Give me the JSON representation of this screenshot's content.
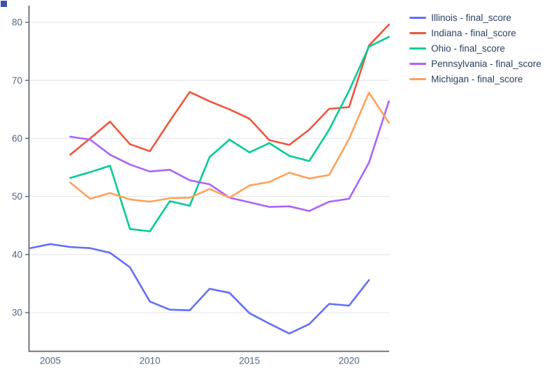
{
  "decorations": {
    "corner_mark_color": "#3d52a8"
  },
  "axes": {
    "axis_color": "#5c6370",
    "grid_color": "#e9eaee",
    "tick_label_color": "#506784",
    "legend_text_color": "#2a3f5f"
  },
  "chart_data": {
    "type": "line",
    "title": "",
    "xlabel": "",
    "ylabel": "",
    "grid": "horizontal-only",
    "legend_position": "outside-top-right",
    "x_ticks": [
      "2005",
      "2010",
      "2015",
      "2020"
    ],
    "x_tick_years": [
      2005,
      2010,
      2015,
      2020
    ],
    "y_ticks": [
      30,
      40,
      50,
      60,
      70,
      80
    ],
    "x_range": [
      2004,
      2022.3
    ],
    "y_range": [
      23.5,
      82.9
    ],
    "series": [
      {
        "name": "Illinois - final_score",
        "color": "#636efa",
        "x": [
          2004,
          2005,
          2006,
          2007,
          2008,
          2009,
          2010,
          2011,
          2012,
          2013,
          2014,
          2015,
          2016,
          2017,
          2018,
          2019,
          2020,
          2021
        ],
        "values": [
          41.1,
          41.8,
          41.3,
          41.1,
          40.3,
          37.8,
          31.9,
          30.5,
          30.4,
          34.1,
          33.4,
          29.9,
          28.1,
          26.4,
          28.0,
          31.5,
          31.2,
          35.6
        ]
      },
      {
        "name": "Indiana - final_score",
        "color": "#ef553b",
        "x": [
          2006,
          2007,
          2008,
          2009,
          2010,
          2011,
          2012,
          2013,
          2014,
          2015,
          2016,
          2017,
          2018,
          2019,
          2020,
          2021,
          2022
        ],
        "values": [
          57.2,
          60.0,
          62.9,
          59.0,
          57.8,
          63.0,
          68.0,
          66.4,
          65.0,
          63.4,
          59.7,
          58.9,
          61.5,
          65.1,
          65.4,
          76.0,
          79.6
        ]
      },
      {
        "name": "Ohio - final_score",
        "color": "#00cc96",
        "x": [
          2006,
          2007,
          2008,
          2009,
          2010,
          2011,
          2012,
          2013,
          2014,
          2015,
          2016,
          2017,
          2018,
          2019,
          2020,
          2021,
          2022
        ],
        "values": [
          53.2,
          54.2,
          55.3,
          44.4,
          44.0,
          49.2,
          48.4,
          56.8,
          59.8,
          57.6,
          59.2,
          57.0,
          56.1,
          61.5,
          68.2,
          75.8,
          77.5
        ]
      },
      {
        "name": "Pennsylvania - final_score",
        "color": "#ab63fa",
        "x": [
          2006,
          2007,
          2008,
          2009,
          2010,
          2011,
          2012,
          2013,
          2014,
          2015,
          2016,
          2017,
          2018,
          2019,
          2020,
          2021,
          2022
        ],
        "values": [
          60.3,
          59.8,
          57.2,
          55.5,
          54.3,
          54.6,
          52.8,
          52.1,
          49.8,
          49.0,
          48.2,
          48.3,
          47.5,
          49.1,
          49.6,
          55.8,
          66.4
        ]
      },
      {
        "name": "Michigan - final_score",
        "color": "#ffa15a",
        "x": [
          2006,
          2007,
          2008,
          2009,
          2010,
          2011,
          2012,
          2013,
          2014,
          2015,
          2016,
          2017,
          2018,
          2019,
          2020,
          2021,
          2022
        ],
        "values": [
          52.4,
          49.6,
          50.6,
          49.5,
          49.1,
          49.7,
          49.8,
          51.3,
          49.8,
          51.9,
          52.5,
          54.1,
          53.1,
          53.7,
          59.9,
          67.9,
          62.7
        ]
      }
    ]
  }
}
